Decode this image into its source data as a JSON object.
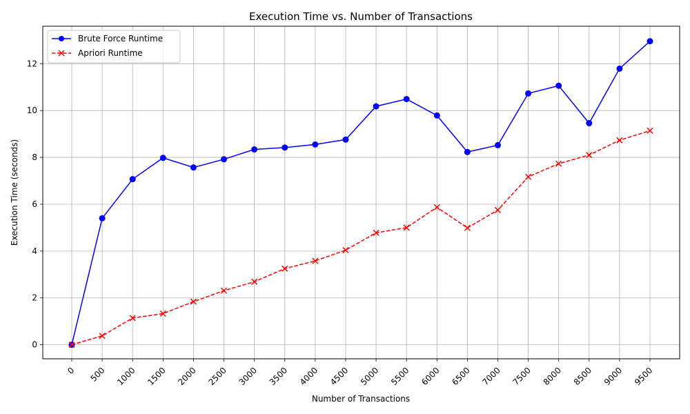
{
  "chart_data": {
    "type": "line",
    "title": "Execution Time vs. Number of Transactions",
    "xlabel": "Number of Transactions",
    "ylabel": "Execution Time (seconds)",
    "x": [
      0,
      500,
      1000,
      1500,
      2000,
      2500,
      3000,
      3500,
      4000,
      4500,
      5000,
      5500,
      6000,
      6500,
      7000,
      7500,
      8000,
      8500,
      9000,
      9500
    ],
    "x_ticks": [
      "0",
      "500",
      "1000",
      "1500",
      "2000",
      "2500",
      "3000",
      "3500",
      "4000",
      "4500",
      "5000",
      "5500",
      "6000",
      "6500",
      "7000",
      "7500",
      "8000",
      "8500",
      "9000",
      "9500"
    ],
    "y_ticks": [
      "0",
      "2",
      "4",
      "6",
      "8",
      "10",
      "12"
    ],
    "ylim": [
      -0.6,
      13.6
    ],
    "grid": true,
    "legend_position": "top-left",
    "series": [
      {
        "name": "Brute Force Runtime",
        "color": "#0000ff",
        "marker": "circle",
        "line_style": "solid",
        "values": [
          0.0,
          5.4,
          7.07,
          7.98,
          7.57,
          7.92,
          8.34,
          8.42,
          8.55,
          8.76,
          10.18,
          10.49,
          9.79,
          8.23,
          8.52,
          10.73,
          11.06,
          9.46,
          11.79,
          12.96
        ]
      },
      {
        "name": "Apriori Runtime",
        "color": "#ff0000",
        "marker": "x",
        "line_style": "dashed",
        "values": [
          0.0,
          0.38,
          1.14,
          1.33,
          1.84,
          2.31,
          2.69,
          3.25,
          3.58,
          4.04,
          4.78,
          5.0,
          5.87,
          4.99,
          5.75,
          7.17,
          7.73,
          8.1,
          8.73,
          9.14
        ]
      }
    ]
  }
}
